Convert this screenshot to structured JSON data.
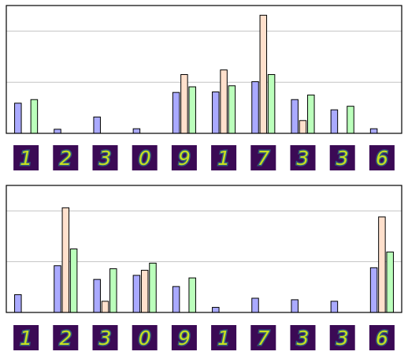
{
  "chart_data": [
    {
      "type": "bar",
      "categories": [
        "1",
        "2",
        "3",
        "0",
        "9",
        "1",
        "7",
        "3",
        "3",
        "6"
      ],
      "ylim": [
        0,
        2.5
      ],
      "grid": true,
      "series": [
        {
          "color": "#aaaaff",
          "values": [
            0.59,
            0.08,
            0.32,
            0.09,
            0.8,
            0.81,
            1.01,
            0.66,
            0.46,
            0.09
          ]
        },
        {
          "color": "#ffe0cc",
          "values": [
            0,
            0,
            0,
            0,
            1.15,
            1.24,
            2.31,
            0.25,
            0,
            0
          ]
        },
        {
          "color": "#bbffbb",
          "values": [
            0.66,
            0,
            0,
            0,
            0.91,
            0.93,
            1.15,
            0.75,
            0.53,
            0
          ]
        }
      ],
      "thumbnails": [
        "1",
        "2",
        "3",
        "0",
        "9",
        "1",
        "7",
        "3",
        "3",
        "6"
      ]
    },
    {
      "type": "bar",
      "categories": [
        "1",
        "2",
        "3",
        "0",
        "9",
        "1",
        "7",
        "3",
        "3",
        "6"
      ],
      "ylim": [
        0,
        2.5
      ],
      "grid": true,
      "series": [
        {
          "color": "#aaaaff",
          "values": [
            0.35,
            0.92,
            0.65,
            0.73,
            0.51,
            0.1,
            0.28,
            0.25,
            0.22,
            0.88
          ]
        },
        {
          "color": "#ffe0cc",
          "values": [
            0,
            2.06,
            0.22,
            0.83,
            0,
            0,
            0,
            0,
            0,
            1.88
          ]
        },
        {
          "color": "#bbffbb",
          "values": [
            0,
            1.25,
            0.86,
            0.97,
            0.68,
            0,
            0,
            0,
            0,
            1.19
          ]
        }
      ],
      "thumbnails": [
        "1",
        "2",
        "3",
        "0",
        "9",
        "1",
        "7",
        "3",
        "3",
        "6"
      ]
    }
  ]
}
